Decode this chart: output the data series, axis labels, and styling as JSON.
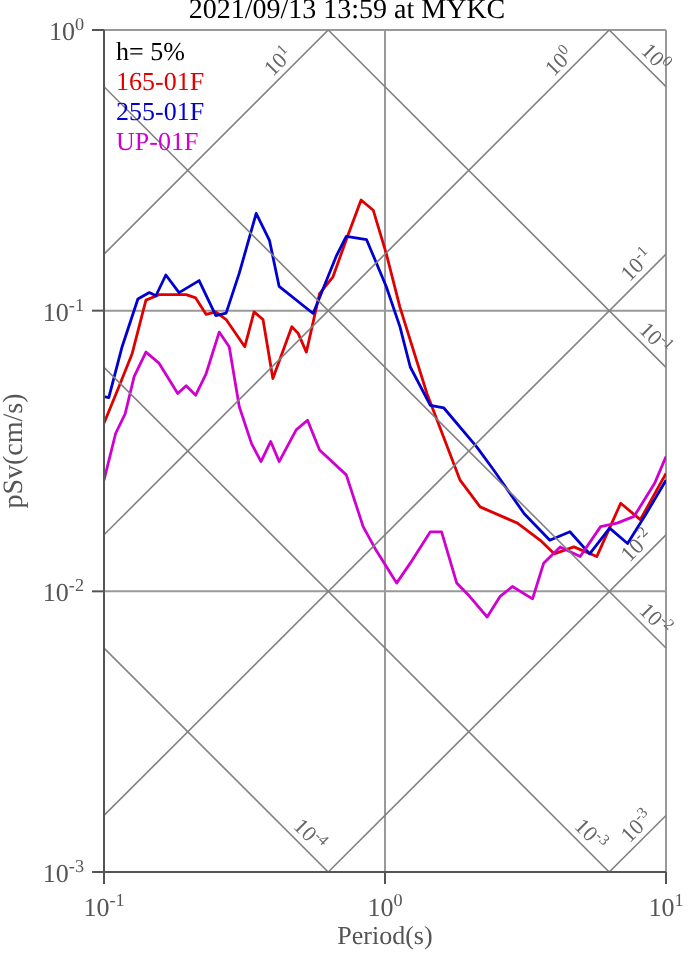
{
  "chart_data": {
    "type": "line",
    "title": "2021/09/13 13:59 at MYKC",
    "xlabel": "Period(s)",
    "ylabel": "pSv(cm/s)",
    "log": "xy",
    "grid": true,
    "legend": "top left",
    "xlim": [
      0.1,
      10
    ],
    "xticks": [
      {
        "value": 0.1,
        "label": "10$^{-1}$"
      },
      {
        "value": 1,
        "label": "10$^{0}$"
      },
      {
        "value": 10,
        "label": "10$^{1}$"
      }
    ],
    "ylim": [
      0.001,
      1
    ],
    "yticks": [
      {
        "value": 0.001,
        "label": "10$^{-3}$"
      },
      {
        "value": 0.01,
        "label": "10$^{-2}$"
      },
      {
        "value": 0.1,
        "label": "10$^{-1}$"
      },
      {
        "value": 1,
        "label": "10$^{0}$"
      }
    ],
    "series": [
      {
        "name": "165-01F",
        "color": "#e00000",
        "x": [
          0.1,
          0.113,
          0.126,
          0.141,
          0.157,
          0.196,
          0.212,
          0.231,
          0.25,
          0.272,
          0.317,
          0.342,
          0.368,
          0.399,
          0.466,
          0.491,
          0.525,
          0.585,
          0.653,
          0.728,
          0.822,
          0.908,
          1.01,
          1.13,
          1.41,
          1.85,
          2.18,
          2.96,
          3.57,
          4.0,
          4.7,
          5.67,
          6.9,
          8.1,
          10
        ],
        "values": [
          0.0397,
          0.0536,
          0.0704,
          0.109,
          0.114,
          0.114,
          0.111,
          0.097,
          0.099,
          0.093,
          0.0744,
          0.099,
          0.093,
          0.0573,
          0.0877,
          0.083,
          0.0712,
          0.115,
          0.132,
          0.179,
          0.248,
          0.228,
          0.16,
          0.103,
          0.0507,
          0.0249,
          0.02,
          0.0175,
          0.0152,
          0.0136,
          0.0144,
          0.0133,
          0.0206,
          0.018,
          0.0263
        ]
      },
      {
        "name": "255-01F",
        "color": "#0000d0",
        "x": [
          0.1,
          0.104,
          0.116,
          0.132,
          0.145,
          0.153,
          0.166,
          0.185,
          0.218,
          0.25,
          0.272,
          0.303,
          0.348,
          0.388,
          0.42,
          0.555,
          0.67,
          0.728,
          0.86,
          1.01,
          1.13,
          1.23,
          1.45,
          1.62,
          2.12,
          2.44,
          3.13,
          3.86,
          4.55,
          5.35,
          6.3,
          7.3,
          8.5,
          10
        ],
        "values": [
          0.0494,
          0.049,
          0.0744,
          0.11,
          0.116,
          0.113,
          0.134,
          0.116,
          0.128,
          0.096,
          0.098,
          0.136,
          0.222,
          0.178,
          0.122,
          0.0977,
          0.156,
          0.184,
          0.179,
          0.122,
          0.0877,
          0.063,
          0.046,
          0.045,
          0.0327,
          0.027,
          0.0189,
          0.0152,
          0.0163,
          0.0136,
          0.0168,
          0.0148,
          0.0189,
          0.0249
        ]
      },
      {
        "name": "UP-01F",
        "color": "#d000d0",
        "x": [
          0.1,
          0.11,
          0.119,
          0.128,
          0.141,
          0.157,
          0.183,
          0.196,
          0.212,
          0.231,
          0.257,
          0.279,
          0.303,
          0.335,
          0.362,
          0.392,
          0.42,
          0.483,
          0.53,
          0.585,
          0.728,
          0.836,
          0.93,
          1.1,
          1.23,
          1.45,
          1.59,
          1.8,
          2.0,
          2.31,
          2.57,
          2.84,
          3.35,
          3.67,
          4.2,
          4.95,
          5.85,
          6.7,
          7.7,
          9.1,
          10
        ],
        "values": [
          0.0249,
          0.0365,
          0.043,
          0.0582,
          0.0712,
          0.065,
          0.0507,
          0.054,
          0.05,
          0.0597,
          0.0839,
          0.0744,
          0.0455,
          0.0336,
          0.029,
          0.0342,
          0.029,
          0.0376,
          0.0407,
          0.0319,
          0.026,
          0.017,
          0.014,
          0.0107,
          0.0126,
          0.0163,
          0.0163,
          0.0107,
          0.0096,
          0.0081,
          0.0096,
          0.0104,
          0.0094,
          0.0126,
          0.0144,
          0.0133,
          0.017,
          0.0175,
          0.0185,
          0.0242,
          0.0302
        ]
      },
      {
        "color": "#808080",
        "x": [
          0.1,
          0.628
        ],
        "values": [
          0.00628,
          0.001
        ]
      },
      {
        "color": "#808080",
        "x": [
          0.1,
          6.28
        ],
        "values": [
          0.0628,
          0.001
        ]
      },
      {
        "color": "#808080",
        "x": [
          0.1,
          10
        ],
        "values": [
          0.628,
          0.00628
        ]
      },
      {
        "color": "#808080",
        "x": [
          0.628,
          10
        ],
        "values": [
          1,
          0.0628
        ]
      },
      {
        "color": "#808080",
        "x": [
          6.28,
          10
        ],
        "values": [
          1,
          0.628
        ]
      },
      {
        "color": "#808080",
        "x": [
          6.28,
          10
        ],
        "values": [
          0.001,
          0.00159
        ]
      },
      {
        "color": "#808080",
        "x": [
          0.628,
          10
        ],
        "values": [
          0.001,
          0.0159
        ]
      },
      {
        "color": "#808080",
        "x": [
          0.1,
          10
        ],
        "values": [
          0.00159,
          0.159
        ]
      },
      {
        "color": "#808080",
        "x": [
          0.1,
          6.28
        ],
        "values": [
          0.0159,
          1
        ]
      },
      {
        "color": "#808080",
        "x": [
          0.1,
          0.628
        ],
        "values": [
          0.159,
          1
        ]
      }
    ],
    "annotations": [
      "h= 5%",
      {
        "text": "10$^{1}$",
        "x": 0.45,
        "y": 0.716
      },
      {
        "text": "10$^{0}$",
        "x": 4.5,
        "y": 0.716
      },
      {
        "text": "10$^{0}$",
        "x": 8.5,
        "y": 0.739
      },
      {
        "text": "10$^{-1}$",
        "x": 8.5,
        "y": 0.135
      },
      {
        "text": "10$^{-1}$",
        "x": 8.5,
        "y": 0.0739
      },
      {
        "text": "10$^{-2}$",
        "x": 8.5,
        "y": 0.0135
      },
      {
        "text": "10$^{-2}$",
        "x": 8.5,
        "y": 0.00739
      },
      {
        "text": "10$^{-4}$",
        "x": 0.5,
        "y": 0.00126
      },
      {
        "text": "10$^{-3}$",
        "x": 5,
        "y": 0.00126
      },
      {
        "text": "10$^{-3}$",
        "x": 8.5,
        "y": 0.00135
      }
    ]
  }
}
